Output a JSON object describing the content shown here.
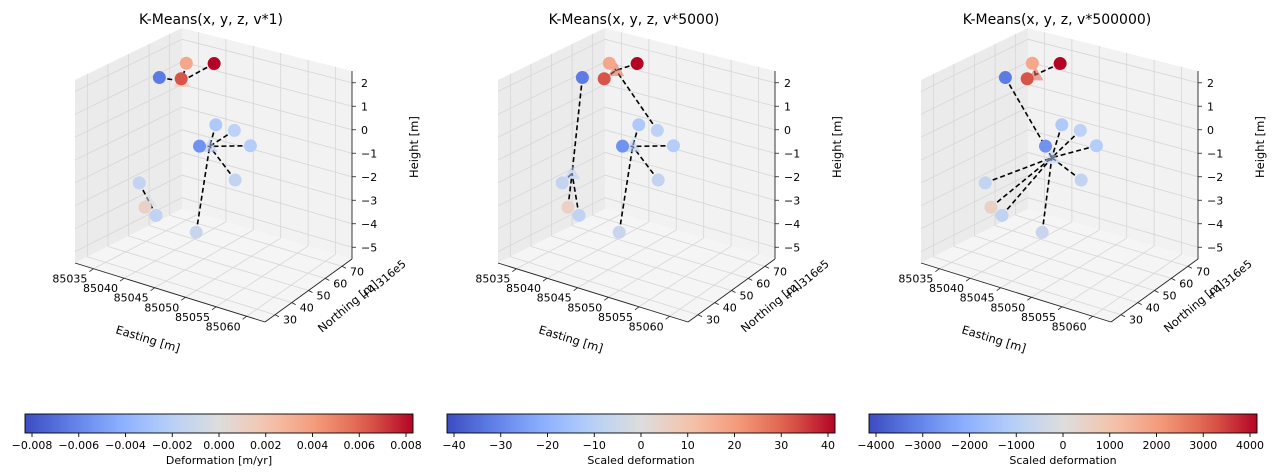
{
  "chart_data": [
    {
      "type": "scatter",
      "title": "K-Means(x, y, z, v*1)",
      "xlabel": "Easting [m]",
      "ylabel": "Northing [m]",
      "zlabel": "Height [m]",
      "y_offset_label": "+4.316e5",
      "xlim": [
        85032,
        85063
      ],
      "ylim": [
        24,
        76
      ],
      "zlim": [
        -5.5,
        2.5
      ],
      "xticks": [
        "85035",
        "85040",
        "85045",
        "85050",
        "85055",
        "85060"
      ],
      "yticks": [
        "30",
        "40",
        "50",
        "60",
        "70"
      ],
      "zticks": [
        "2",
        "1",
        "0",
        "−1",
        "−2",
        "−3",
        "−4",
        "−5"
      ],
      "colorbar": {
        "label": "Deformation [m/yr]",
        "ticks": [
          "−0.008",
          "−0.006",
          "−0.004",
          "−0.002",
          "0.000",
          "0.002",
          "0.004",
          "0.006",
          "0.008"
        ],
        "ticks_numeric": [
          -0.008,
          -0.006,
          -0.004,
          -0.002,
          0,
          0.002,
          0.004,
          0.006,
          0.008
        ],
        "vmin": -0.0083,
        "vmax": 0.0083,
        "colormap": "coolwarm"
      },
      "points": [
        {
          "x": 85040,
          "y": 30,
          "z": 1.7,
          "v": 0.0083
        },
        {
          "x": 85035,
          "y": 30,
          "z": 1.4,
          "v": 0.0035
        },
        {
          "x": 85038,
          "y": 41,
          "z": 1.4,
          "v": 0.0065
        },
        {
          "x": 85032,
          "y": 35,
          "z": 0.8,
          "v": -0.0065
        },
        {
          "x": 85048,
          "y": 53,
          "z": 0.6,
          "v": -0.0025
        },
        {
          "x": 85049,
          "y": 65,
          "z": 0.3,
          "v": -0.0055
        },
        {
          "x": 85053,
          "y": 50,
          "z": -0.1,
          "v": -0.0022
        },
        {
          "x": 85047,
          "y": 40,
          "z": -0.3,
          "v": -0.0018
        },
        {
          "x": 85051,
          "y": 52,
          "z": -1.6,
          "v": -0.0015
        },
        {
          "x": 85043,
          "y": 48,
          "z": -4.6,
          "v": -0.0012
        },
        {
          "x": 85031,
          "y": 42,
          "z": -3.6,
          "v": -0.0015
        },
        {
          "x": 85035,
          "y": 45,
          "z": -4.6,
          "v": -0.0016
        },
        {
          "x": 85032,
          "y": 42,
          "z": -4.6,
          "v": 0.001
        }
      ],
      "centroids": [
        {
          "x": 85036,
          "y": 35,
          "z": 0.9,
          "v": 0.0025
        },
        {
          "x": 85045,
          "y": 47,
          "z": -0.8,
          "v": -0.0025
        },
        {
          "x": 85033,
          "y": 43,
          "z": -4.2,
          "v": -0.0005
        }
      ],
      "assignments": [
        0,
        0,
        0,
        0,
        1,
        1,
        1,
        1,
        1,
        1,
        2,
        2,
        2
      ]
    },
    {
      "type": "scatter",
      "title": "K-Means(x, y, z, v*5000)",
      "xlabel": "Easting [m]",
      "ylabel": "Northing [m]",
      "zlabel": "Height [m]",
      "y_offset_label": "+4.316e5",
      "xlim": [
        85032,
        85063
      ],
      "ylim": [
        24,
        76
      ],
      "zlim": [
        -5.5,
        2.5
      ],
      "xticks": [
        "85035",
        "85040",
        "85045",
        "85050",
        "85055",
        "85060"
      ],
      "yticks": [
        "30",
        "40",
        "50",
        "60",
        "70"
      ],
      "zticks": [
        "2",
        "1",
        "0",
        "−1",
        "−2",
        "−3",
        "−4",
        "−5"
      ],
      "colorbar": {
        "label": "Scaled deformation",
        "ticks": [
          "−40",
          "−30",
          "−20",
          "−10",
          "0",
          "10",
          "20",
          "30",
          "40"
        ],
        "ticks_numeric": [
          -40,
          -30,
          -20,
          -10,
          0,
          10,
          20,
          30,
          40
        ],
        "vmin": -41.5,
        "vmax": 41.5,
        "colormap": "coolwarm"
      },
      "points": [
        {
          "x": 85040,
          "y": 30,
          "z": 1.7,
          "v": 41.5
        },
        {
          "x": 85035,
          "y": 30,
          "z": 1.4,
          "v": 17.5
        },
        {
          "x": 85038,
          "y": 41,
          "z": 1.4,
          "v": 32.5
        },
        {
          "x": 85032,
          "y": 35,
          "z": 0.8,
          "v": -32.5
        },
        {
          "x": 85048,
          "y": 53,
          "z": 0.6,
          "v": -12.5
        },
        {
          "x": 85049,
          "y": 65,
          "z": 0.3,
          "v": -27.5
        },
        {
          "x": 85053,
          "y": 50,
          "z": -0.1,
          "v": -11
        },
        {
          "x": 85047,
          "y": 40,
          "z": -0.3,
          "v": -9
        },
        {
          "x": 85051,
          "y": 52,
          "z": -1.6,
          "v": -7.5
        },
        {
          "x": 85043,
          "y": 48,
          "z": -4.6,
          "v": -6
        },
        {
          "x": 85031,
          "y": 42,
          "z": -3.6,
          "v": -7.5
        },
        {
          "x": 85035,
          "y": 45,
          "z": -4.6,
          "v": -8
        },
        {
          "x": 85032,
          "y": 42,
          "z": -4.6,
          "v": 5
        }
      ],
      "centroids": [
        {
          "x": 85038,
          "y": 35,
          "z": 1.5,
          "v": 30
        },
        {
          "x": 85045,
          "y": 47,
          "z": -0.8,
          "v": -12
        },
        {
          "x": 85032,
          "y": 40,
          "z": -3.2,
          "v": -10
        }
      ],
      "assignments": [
        0,
        0,
        0,
        2,
        1,
        1,
        1,
        0,
        1,
        1,
        2,
        2,
        2
      ]
    },
    {
      "type": "scatter",
      "title": "K-Means(x, y, z, v*500000)",
      "xlabel": "Easting [m]",
      "ylabel": "Northing [m]",
      "zlabel": "Height [m]",
      "y_offset_label": "+4.316e5",
      "xlim": [
        85032,
        85063
      ],
      "ylim": [
        24,
        76
      ],
      "zlim": [
        -5.5,
        2.5
      ],
      "xticks": [
        "85035",
        "85040",
        "85045",
        "85050",
        "85055",
        "85060"
      ],
      "yticks": [
        "30",
        "40",
        "50",
        "60",
        "70"
      ],
      "zticks": [
        "2",
        "1",
        "0",
        "−1",
        "−2",
        "−3",
        "−4",
        "−5"
      ],
      "colorbar": {
        "label": "Scaled deformation",
        "ticks": [
          "−4000",
          "−3000",
          "−2000",
          "−1000",
          "0",
          "1000",
          "2000",
          "3000",
          "4000"
        ],
        "ticks_numeric": [
          -4000,
          -3000,
          -2000,
          -1000,
          0,
          1000,
          2000,
          3000,
          4000
        ],
        "vmin": -4150,
        "vmax": 4150,
        "colormap": "coolwarm"
      },
      "points": [
        {
          "x": 85040,
          "y": 30,
          "z": 1.7,
          "v": 4150
        },
        {
          "x": 85035,
          "y": 30,
          "z": 1.4,
          "v": 1750
        },
        {
          "x": 85038,
          "y": 41,
          "z": 1.4,
          "v": 3250
        },
        {
          "x": 85032,
          "y": 35,
          "z": 0.8,
          "v": -3250
        },
        {
          "x": 85048,
          "y": 53,
          "z": 0.6,
          "v": -1250
        },
        {
          "x": 85049,
          "y": 65,
          "z": 0.3,
          "v": -2750
        },
        {
          "x": 85053,
          "y": 50,
          "z": -0.1,
          "v": -1100
        },
        {
          "x": 85047,
          "y": 40,
          "z": -0.3,
          "v": -900
        },
        {
          "x": 85051,
          "y": 52,
          "z": -1.6,
          "v": -750
        },
        {
          "x": 85043,
          "y": 48,
          "z": -4.6,
          "v": -600
        },
        {
          "x": 85031,
          "y": 42,
          "z": -3.6,
          "v": -750
        },
        {
          "x": 85035,
          "y": 45,
          "z": -4.6,
          "v": -800
        },
        {
          "x": 85032,
          "y": 42,
          "z": -4.6,
          "v": 500
        }
      ],
      "centroids": [
        {
          "x": 85037,
          "y": 34,
          "z": 1.2,
          "v": 3000
        },
        {
          "x": 85044,
          "y": 46,
          "z": -1.4,
          "v": -1000
        }
      ],
      "assignments": [
        0,
        0,
        0,
        1,
        1,
        1,
        1,
        1,
        1,
        1,
        1,
        1,
        1
      ]
    }
  ]
}
